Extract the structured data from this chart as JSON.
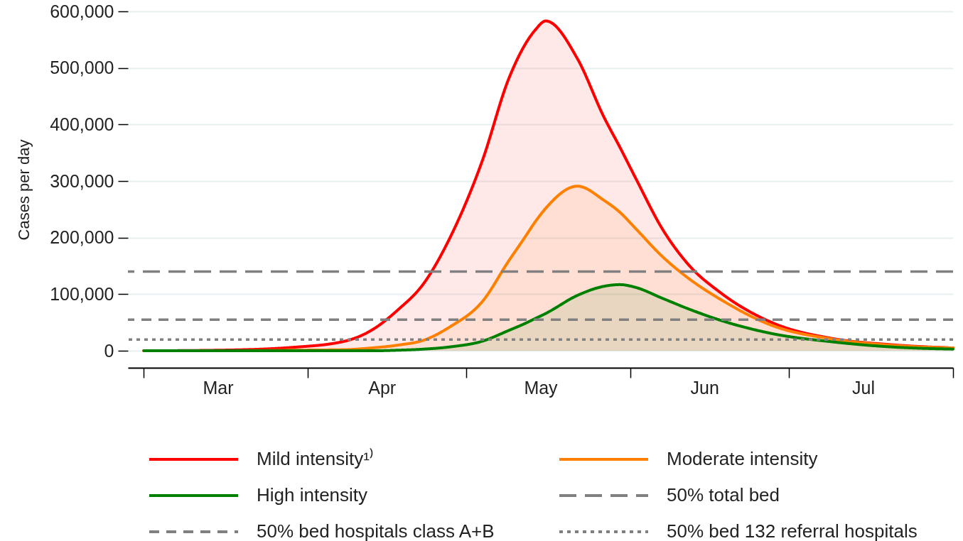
{
  "chart_data": {
    "type": "area",
    "ylabel": "Cases per day",
    "x": [
      "--03-01",
      "--03-15",
      "--03-29",
      "--04-08",
      "--04-13",
      "--04-18",
      "--04-23",
      "--04-28",
      "--05-04",
      "--05-09",
      "--05-12",
      "--05-14",
      "--05-16",
      "--05-22",
      "--05-27",
      "--05-30",
      "--06-02",
      "--06-07",
      "--06-12",
      "--06-18",
      "--06-28",
      "--07-09",
      "--07-20",
      "--08-01"
    ],
    "series": [
      {
        "name": "Mild intensity¹⁾",
        "color": "#ff0000",
        "values": [
          0,
          1000,
          6000,
          17000,
          36000,
          72000,
          120000,
          202000,
          336000,
          481000,
          540000,
          567000,
          583000,
          516000,
          413000,
          360000,
          305000,
          216000,
          152000,
          103000,
          49000,
          22000,
          11000,
          5000
        ]
      },
      {
        "name": "Moderate intensity",
        "color": "#ff8000",
        "values": [
          0,
          0,
          1000,
          2000,
          5000,
          10000,
          19000,
          43000,
          87000,
          159000,
          200000,
          228000,
          252000,
          291000,
          266000,
          245000,
          216000,
          167000,
          128000,
          91000,
          44000,
          21000,
          10000,
          5000
        ]
      },
      {
        "name": "High intensity",
        "color": "#008000",
        "values": [
          0,
          0,
          0,
          0,
          0,
          1000,
          3000,
          7000,
          17000,
          36000,
          48000,
          57000,
          66000,
          98000,
          114000,
          117000,
          112000,
          93000,
          74000,
          54000,
          30000,
          16000,
          7000,
          3000
        ]
      }
    ],
    "ref_lines": [
      {
        "axis": "y",
        "value": 140000,
        "label": "50% total bed",
        "color": "#808080",
        "line_style": "dashed"
      },
      {
        "axis": "y",
        "value": 55000,
        "label": "50% bed hospitals class A+B",
        "color": "#808080",
        "line_style": "dashed"
      },
      {
        "axis": "y",
        "value": 20000,
        "label": "50% bed 132 referral hospitals",
        "color": "#808080",
        "line_style": "dotted"
      }
    ],
    "xlim": [
      "--02-26",
      "--08-01"
    ],
    "xticks": [
      {
        "value": "--03-01",
        "label": null
      },
      {
        "value": "--03-15",
        "label": "Mar"
      },
      {
        "value": "--04-01",
        "label": null
      },
      {
        "value": "--04-15",
        "label": "Apr"
      },
      {
        "value": "--05-01",
        "label": null
      },
      {
        "value": "--05-15",
        "label": "May"
      },
      {
        "value": "--06-01",
        "label": null
      },
      {
        "value": "--06-15",
        "label": "Jun"
      },
      {
        "value": "--07-01",
        "label": null
      },
      {
        "value": "--07-15",
        "label": "Jul"
      },
      {
        "value": "--08-01",
        "label": null
      }
    ],
    "ylim": [
      -30000,
      600000
    ],
    "yticks": [
      0,
      {
        "value": 100000,
        "label": "100,000"
      },
      {
        "value": 200000,
        "label": "200,000"
      },
      {
        "value": 300000,
        "label": "300,000"
      },
      {
        "value": 400000,
        "label": "400,000"
      },
      {
        "value": 500000,
        "label": "500,000"
      },
      {
        "value": 600000,
        "label": "600,000"
      }
    ],
    "grid": "y",
    "legend": "bottom",
    "line_style": "solid",
    "marker": "none"
  }
}
